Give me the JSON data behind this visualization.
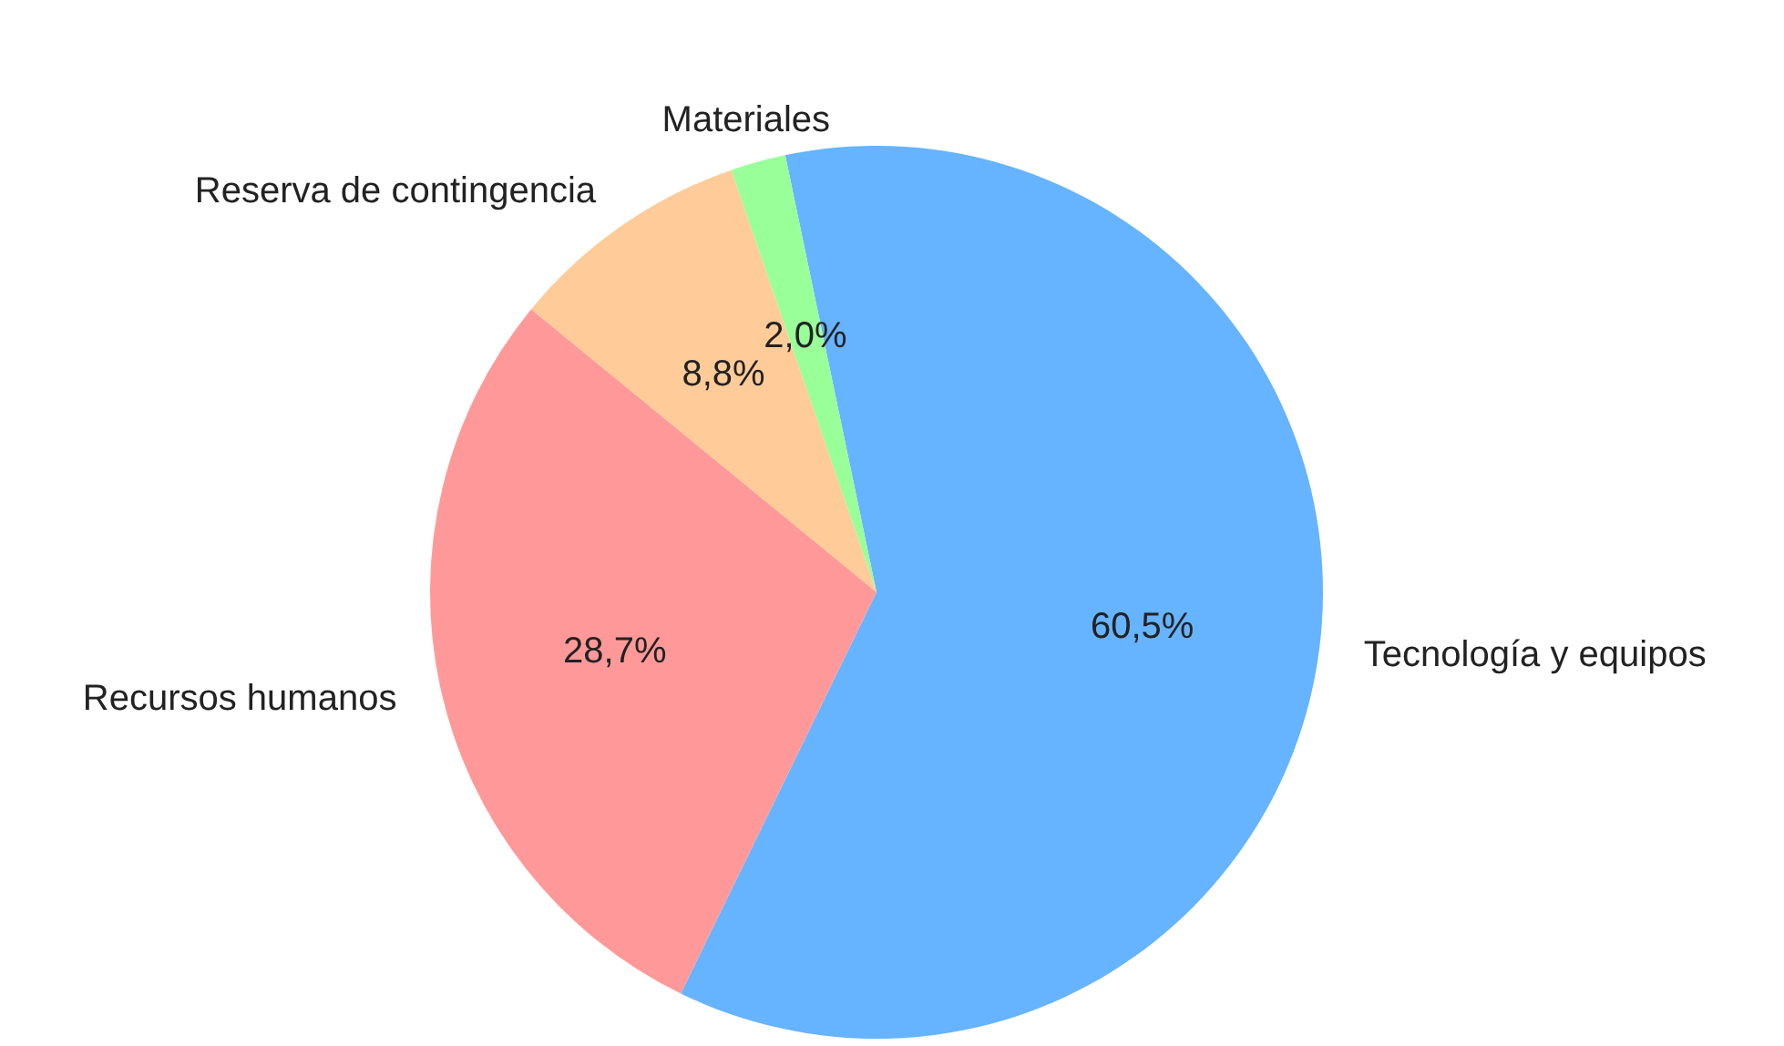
{
  "chart_data": {
    "type": "pie",
    "categories": [
      "Tecnología y equipos",
      "Materiales",
      "Reserva de contingencia",
      "Recursos humanos"
    ],
    "values": [
      60.5,
      2.0,
      8.8,
      28.7
    ],
    "colors": [
      "#66b3ff",
      "#99ff99",
      "#ffcc99",
      "#ff9999"
    ],
    "value_labels": [
      "60,5%",
      "2,0%",
      "8,8%",
      "28,7%"
    ]
  }
}
